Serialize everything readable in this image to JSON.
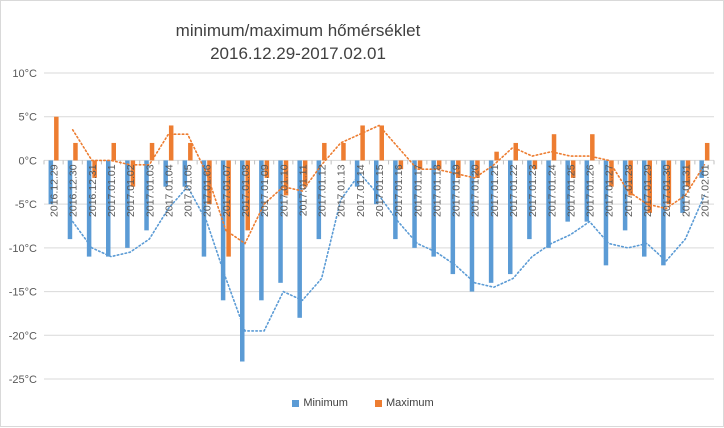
{
  "chart_data": {
    "type": "bar",
    "title": "minimum/maximum hőmérséklet",
    "subtitle": "2016.12.29-2017.02.01",
    "categories": [
      "2016.12.29",
      "2016.12.30",
      "2016.12.31",
      "2017.01.01",
      "2017.01.02",
      "2017.01.03",
      "2017.01.04",
      "2017.01.05",
      "2017.01.06",
      "2017.01.07",
      "2017.01.08",
      "2017.01.09",
      "2017.01.10",
      "2017.01.11",
      "2017.01.12",
      "2017.01.13",
      "2017.01.14",
      "2017.01.15",
      "2017.01.16",
      "2017.01.17",
      "2017.01.18",
      "2017.01.19",
      "2017.01.20",
      "2017.01.21",
      "2017.01.22",
      "2017.01.23",
      "2017.01.24",
      "2017.01.25",
      "2017.01.26",
      "2017.01.27",
      "2017.01.28",
      "2017.01.29",
      "2017.01.30",
      "2017.01.31",
      "2017.02.01"
    ],
    "series": [
      {
        "name": "Minimum",
        "color": "#5b9bd5",
        "values": [
          -5,
          -9,
          -11,
          -11,
          -10,
          -8,
          -3,
          -3,
          -11,
          -16,
          -23,
          -16,
          -14,
          -18,
          -9,
          0,
          -3,
          -5,
          -9,
          -10,
          -11,
          -13,
          -15,
          -14,
          -13,
          -9,
          -10,
          -7,
          -7,
          -12,
          -8,
          -11,
          -12,
          -6,
          -2
        ]
      },
      {
        "name": "Maximum",
        "color": "#ed7d31",
        "values": [
          5,
          2,
          -2,
          2,
          -3,
          2,
          4,
          2,
          -5,
          -11,
          -8,
          -2,
          -4,
          -3,
          2,
          2,
          4,
          4,
          -1,
          -1,
          -1,
          -2,
          -2,
          1,
          2,
          -1,
          3,
          -2,
          3,
          -3,
          -4,
          -6,
          -5,
          -3,
          2
        ]
      }
    ],
    "trendlines": [
      {
        "series": "Minimum",
        "type": "moving-average",
        "period": 2,
        "color": "#5b9bd5",
        "style": "dotted"
      },
      {
        "series": "Maximum",
        "type": "moving-average",
        "period": 2,
        "color": "#ed7d31",
        "style": "dotted"
      }
    ],
    "yaxis": {
      "ticks": [
        10,
        5,
        0,
        -5,
        -10,
        -15,
        -20,
        -25
      ],
      "tick_labels": [
        "10°C",
        "5°C",
        "0°C",
        "-5°C",
        "-10°C",
        "-15°C",
        "-20°C",
        "-25°C"
      ]
    },
    "ylim": [
      -25,
      10
    ],
    "grid": true,
    "legend": "bottom"
  }
}
